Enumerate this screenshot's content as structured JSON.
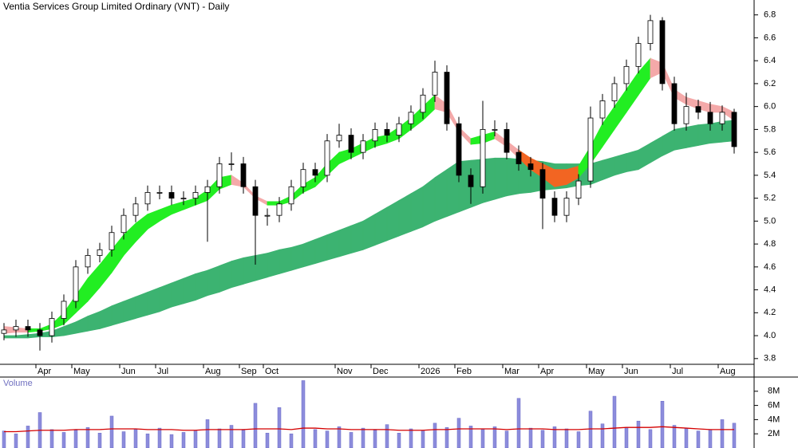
{
  "chart_data": {
    "type": "candlestick",
    "title": "Ventia Services Group Limited Ordinary (VNT) - Daily",
    "categories": [
      null,
      null,
      null,
      "Apr",
      null,
      null,
      "May",
      null,
      null,
      null,
      "Jun",
      null,
      null,
      "Jul",
      null,
      null,
      null,
      "Aug",
      null,
      null,
      "Sep",
      null,
      "Oct",
      null,
      null,
      null,
      null,
      null,
      "Nov",
      null,
      null,
      "Dec",
      null,
      null,
      null,
      "2026",
      null,
      null,
      "Feb",
      null,
      null,
      null,
      "Mar",
      null,
      null,
      "Apr",
      null,
      null,
      null,
      "May",
      null,
      null,
      "Jun",
      null,
      null,
      null,
      "Jul",
      null,
      null,
      null,
      "Aug",
      null
    ],
    "open": [
      4.02,
      4.05,
      4.08,
      4.05,
      4.0,
      4.15,
      4.3,
      4.6,
      4.7,
      4.75,
      4.9,
      5.05,
      5.15,
      5.25,
      5.25,
      5.2,
      5.2,
      5.25,
      5.3,
      5.5,
      5.5,
      5.3,
      5.05,
      5.05,
      5.15,
      5.3,
      5.45,
      5.4,
      5.7,
      5.75,
      5.6,
      5.7,
      5.8,
      5.75,
      5.85,
      5.95,
      6.1,
      6.3,
      5.85,
      5.4,
      5.3,
      5.8,
      5.8,
      5.6,
      5.5,
      5.45,
      5.2,
      5.05,
      5.2,
      5.35,
      5.9,
      6.05,
      6.2,
      6.35,
      6.55,
      6.75,
      6.2,
      5.85,
      6.0,
      5.95,
      5.85,
      5.95
    ],
    "high": [
      4.11,
      4.14,
      4.14,
      4.11,
      4.21,
      4.36,
      4.66,
      4.76,
      4.81,
      4.96,
      5.11,
      5.21,
      5.31,
      5.31,
      5.31,
      5.26,
      5.31,
      5.36,
      5.56,
      5.6,
      5.56,
      5.36,
      5.11,
      5.21,
      5.36,
      5.51,
      5.51,
      5.76,
      5.85,
      5.81,
      5.76,
      5.86,
      5.86,
      5.91,
      6.01,
      6.16,
      6.4,
      6.36,
      5.91,
      5.46,
      6.05,
      5.88,
      5.86,
      5.66,
      5.56,
      5.51,
      5.26,
      5.26,
      5.41,
      6.0,
      6.11,
      6.26,
      6.41,
      6.61,
      6.8,
      6.78,
      6.26,
      6.12,
      6.06,
      6.04,
      6.01,
      5.98
    ],
    "low": [
      3.96,
      3.99,
      3.99,
      3.87,
      3.94,
      4.09,
      4.24,
      4.54,
      4.64,
      4.69,
      4.84,
      4.99,
      5.09,
      5.19,
      5.14,
      5.14,
      5.14,
      4.82,
      5.24,
      5.44,
      5.24,
      4.62,
      4.96,
      4.99,
      5.09,
      5.24,
      5.34,
      5.34,
      5.64,
      5.54,
      5.54,
      5.64,
      5.69,
      5.69,
      5.79,
      5.89,
      6.04,
      5.79,
      5.34,
      5.15,
      5.24,
      5.74,
      5.54,
      5.44,
      5.39,
      4.93,
      4.99,
      4.99,
      5.14,
      5.29,
      5.84,
      5.99,
      6.14,
      6.29,
      6.49,
      6.14,
      5.79,
      5.79,
      5.89,
      5.79,
      5.79,
      5.59
    ],
    "close": [
      4.05,
      4.08,
      4.05,
      4.0,
      4.15,
      4.3,
      4.6,
      4.7,
      4.75,
      4.9,
      5.05,
      5.15,
      5.25,
      5.25,
      5.2,
      5.2,
      5.25,
      5.3,
      5.5,
      5.5,
      5.3,
      5.05,
      5.05,
      5.15,
      5.3,
      5.45,
      5.4,
      5.7,
      5.75,
      5.6,
      5.7,
      5.8,
      5.75,
      5.85,
      5.95,
      6.1,
      6.3,
      5.85,
      5.4,
      5.3,
      5.8,
      5.8,
      5.6,
      5.5,
      5.45,
      5.2,
      5.05,
      5.2,
      5.35,
      5.9,
      6.05,
      6.2,
      6.35,
      6.55,
      6.75,
      6.2,
      5.85,
      6.0,
      5.95,
      5.85,
      5.95,
      5.65
    ],
    "short_band": {
      "upper": [
        4.08,
        4.07,
        4.06,
        4.06,
        4.1,
        4.2,
        4.35,
        4.5,
        4.62,
        4.75,
        4.88,
        4.98,
        5.06,
        5.1,
        5.14,
        5.17,
        5.2,
        5.27,
        5.38,
        5.4,
        5.33,
        5.22,
        5.17,
        5.17,
        5.22,
        5.32,
        5.38,
        5.5,
        5.6,
        5.63,
        5.68,
        5.73,
        5.75,
        5.82,
        5.9,
        6.0,
        6.1,
        6.02,
        5.82,
        5.72,
        5.75,
        5.78,
        5.7,
        5.62,
        5.55,
        5.5,
        5.45,
        5.45,
        5.48,
        5.65,
        5.85,
        6.0,
        6.15,
        6.3,
        6.42,
        6.38,
        6.15,
        6.08,
        6.05,
        6.02,
        6.0,
        5.95
      ],
      "lower": [
        4.02,
        4.03,
        4.03,
        4.04,
        4.06,
        4.1,
        4.2,
        4.3,
        4.42,
        4.55,
        4.7,
        4.82,
        4.93,
        5.0,
        5.06,
        5.1,
        5.14,
        5.18,
        5.28,
        5.32,
        5.3,
        5.2,
        5.14,
        5.14,
        5.17,
        5.25,
        5.3,
        5.4,
        5.5,
        5.55,
        5.6,
        5.65,
        5.68,
        5.72,
        5.8,
        5.88,
        5.98,
        5.95,
        5.78,
        5.67,
        5.68,
        5.72,
        5.65,
        5.55,
        5.45,
        5.38,
        5.3,
        5.32,
        5.38,
        5.5,
        5.65,
        5.8,
        5.95,
        6.1,
        6.25,
        6.3,
        6.08,
        6.02,
        5.98,
        5.95,
        5.95,
        5.88
      ]
    },
    "long_band": {
      "upper": [
        4.0,
        4.0,
        4.01,
        4.02,
        4.04,
        4.08,
        4.12,
        4.17,
        4.21,
        4.26,
        4.3,
        4.34,
        4.38,
        4.42,
        4.46,
        4.5,
        4.54,
        4.57,
        4.61,
        4.65,
        4.68,
        4.7,
        4.72,
        4.75,
        4.77,
        4.8,
        4.84,
        4.88,
        4.92,
        4.96,
        5.0,
        5.06,
        5.12,
        5.18,
        5.24,
        5.3,
        5.38,
        5.45,
        5.52,
        5.53,
        5.54,
        5.55,
        5.55,
        5.54,
        5.53,
        5.52,
        5.5,
        5.5,
        5.5,
        5.5,
        5.53,
        5.56,
        5.59,
        5.62,
        5.68,
        5.74,
        5.8,
        5.82,
        5.84,
        5.85,
        5.87,
        5.88
      ],
      "lower": [
        3.98,
        3.98,
        3.98,
        3.99,
        3.99,
        4.0,
        4.02,
        4.04,
        4.06,
        4.09,
        4.12,
        4.15,
        4.18,
        4.21,
        4.25,
        4.28,
        4.31,
        4.35,
        4.38,
        4.42,
        4.45,
        4.48,
        4.51,
        4.54,
        4.57,
        4.6,
        4.63,
        4.66,
        4.69,
        4.72,
        4.75,
        4.79,
        4.83,
        4.87,
        4.91,
        4.95,
        5.0,
        5.04,
        5.08,
        5.12,
        5.16,
        5.19,
        5.22,
        5.24,
        5.25,
        5.27,
        5.28,
        5.29,
        5.31,
        5.32,
        5.36,
        5.4,
        5.43,
        5.45,
        5.51,
        5.57,
        5.62,
        5.64,
        5.66,
        5.68,
        5.69,
        5.7
      ],
      "color": "#3cb371"
    },
    "rising_color": "#22ee22",
    "falling_color": "#f4a9a9",
    "cross_color": "#f26522",
    "ylim": [
      3.75,
      6.93
    ],
    "yticks": [
      3.8,
      {
        "value": 4,
        "label": "4.0"
      },
      4.2,
      4.4,
      4.6,
      4.8,
      {
        "value": 5,
        "label": "5.0"
      },
      5.2,
      5.4,
      5.6,
      5.8,
      {
        "value": 6,
        "label": "6.0"
      },
      6.2,
      6.4,
      6.6,
      6.8
    ],
    "volume": {
      "label": "Volume",
      "color": "#8c8cdc",
      "average_color": "#d40000",
      "values": [
        2400000,
        2000000,
        3100000,
        5000000,
        2600000,
        2200000,
        2500000,
        2900000,
        2100000,
        4500000,
        2300000,
        2600000,
        2000000,
        2800000,
        1900000,
        2200000,
        2400000,
        4000000,
        2700000,
        3200000,
        2500000,
        6300000,
        2100000,
        5700000,
        2000000,
        9500000,
        2600000,
        2400000,
        3000000,
        2200000,
        2800000,
        2500000,
        3300000,
        2100000,
        2700000,
        2400000,
        3500000,
        2900000,
        4200000,
        3100000,
        2600000,
        3000000,
        2400000,
        7000000,
        2800000,
        2500000,
        3000000,
        2700000,
        2300000,
        5200000,
        3400000,
        7300000,
        2900000,
        3800000,
        2600000,
        6600000,
        3200000,
        2800000,
        2400000,
        2600000,
        4000000,
        3500000
      ],
      "average": [
        2300000,
        2300000,
        2400000,
        2500000,
        2500000,
        2500000,
        2600000,
        2600000,
        2600000,
        2700000,
        2700000,
        2700000,
        2600000,
        2600000,
        2600000,
        2500000,
        2500000,
        2600000,
        2600000,
        2600000,
        2600000,
        2700000,
        2700000,
        2700000,
        2600000,
        2800000,
        2800000,
        2700000,
        2700000,
        2600000,
        2600000,
        2600000,
        2600000,
        2500000,
        2500000,
        2500000,
        2600000,
        2600000,
        2700000,
        2700000,
        2700000,
        2700000,
        2600000,
        2700000,
        2700000,
        2700000,
        2600000,
        2600000,
        2600000,
        2700000,
        2700000,
        2800000,
        2900000,
        2900000,
        2900000,
        3000000,
        2900000,
        2800000,
        2700000,
        2600000,
        2600000,
        2600000
      ],
      "ylim": [
        0,
        10000000
      ],
      "yticks": [
        {
          "value": 2000000,
          "label": "2M"
        },
        {
          "value": 4000000,
          "label": "4M"
        },
        {
          "value": 6000000,
          "label": "6M"
        },
        {
          "value": 8000000,
          "label": "8M"
        }
      ]
    }
  }
}
